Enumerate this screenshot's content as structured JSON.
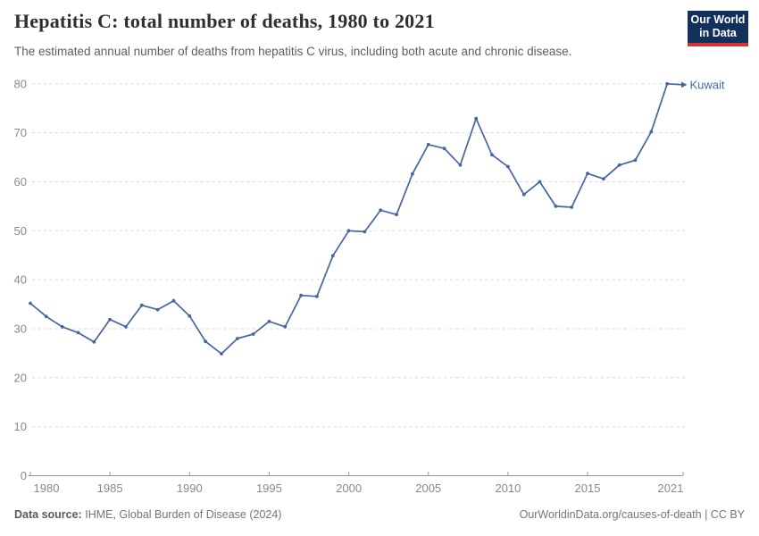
{
  "header": {
    "title": "Hepatitis C: total number of deaths, 1980 to 2021",
    "subtitle": "The estimated annual number of deaths from hepatitis C virus, including both acute and chronic disease.",
    "logo": {
      "line1": "Our World",
      "line2": "in Data"
    }
  },
  "colors": {
    "line": "#4566a1",
    "logo_bg": "#12305c",
    "logo_bar": "#d7332f",
    "grid": "#d9d9d9",
    "axis_text": "#898989"
  },
  "chart_data": {
    "type": "line",
    "title": "Hepatitis C: total number of deaths, 1980 to 2021",
    "xlabel": "",
    "ylabel": "",
    "ylim": [
      0,
      80
    ],
    "yticks": [
      0,
      10,
      20,
      30,
      40,
      50,
      60,
      70,
      80
    ],
    "xticks": [
      1980,
      1985,
      1990,
      1995,
      2000,
      2005,
      2010,
      2015,
      2021
    ],
    "grid": "horizontal-dashed",
    "legend": "end-of-line-label",
    "x": [
      1980,
      1981,
      1982,
      1983,
      1984,
      1985,
      1986,
      1987,
      1988,
      1989,
      1990,
      1991,
      1992,
      1993,
      1994,
      1995,
      1996,
      1997,
      1998,
      1999,
      2000,
      2001,
      2002,
      2003,
      2004,
      2005,
      2006,
      2007,
      2008,
      2009,
      2010,
      2011,
      2012,
      2013,
      2014,
      2015,
      2016,
      2017,
      2018,
      2019,
      2020,
      2021
    ],
    "series": [
      {
        "name": "Kuwait",
        "color": "#4566a1",
        "values": [
          35.2,
          32.5,
          30.4,
          29.2,
          27.3,
          31.9,
          30.4,
          34.8,
          33.9,
          35.7,
          32.6,
          27.4,
          24.9,
          28.0,
          28.9,
          31.5,
          30.4,
          36.8,
          36.6,
          44.9,
          50.0,
          49.8,
          54.2,
          53.3,
          61.6,
          67.6,
          66.8,
          63.4,
          72.9,
          65.5,
          63.1,
          57.4,
          60.0,
          55.0,
          54.8,
          61.7,
          60.6,
          63.4,
          64.4,
          70.2,
          80.0,
          79.8
        ]
      }
    ]
  },
  "footer": {
    "source_label": "Data source:",
    "source_text": "IHME, Global Burden of Disease (2024)",
    "credit": "OurWorldinData.org/causes-of-death | CC BY"
  }
}
